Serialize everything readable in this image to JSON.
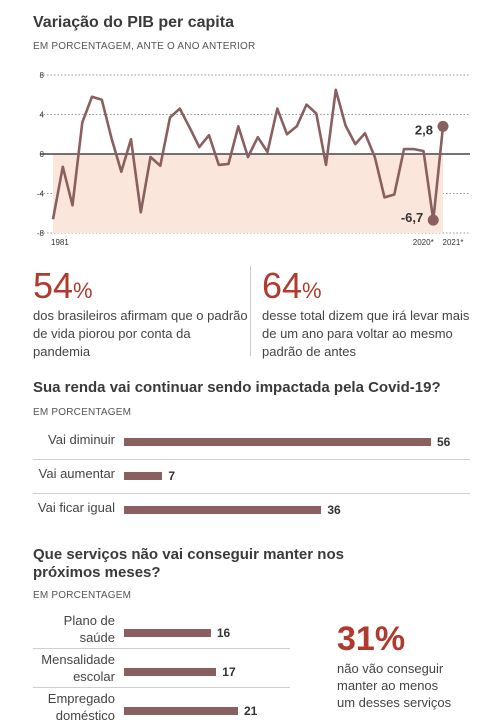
{
  "chart1": {
    "title": "Variação do PIB per capita",
    "subtitle": "EM PORCENTAGEM, ANTE O ANO ANTERIOR",
    "x_start_label": "1981",
    "x_end_labels": [
      "2020*",
      "2021*"
    ],
    "annotations": {
      "high": "2,8",
      "low": "-6,7"
    }
  },
  "stats": {
    "left": {
      "number": "54",
      "unit": "%",
      "text": "dos brasileiros afirmam que o padrão de vida piorou por conta da pandemia"
    },
    "right": {
      "number": "64",
      "unit": "%",
      "text": "desse total dizem que irá levar mais de um ano para voltar ao mesmo padrão de antes"
    }
  },
  "chart2": {
    "title": "Sua renda vai continuar sendo impactada pela Covid-19?",
    "subtitle": "EM PORCENTAGEM"
  },
  "chart3": {
    "title_line1": "Que serviços não vai conseguir manter nos",
    "title_line2": "próximos meses?",
    "subtitle": "EM PORCENTAGEM",
    "callout_number": "31%",
    "callout_text": [
      "não vão conseguir",
      "manter ao menos",
      "um desses serviços"
    ]
  },
  "chart_data": [
    {
      "type": "line",
      "title": "Variação do PIB per capita",
      "x": [
        1981,
        1982,
        1983,
        1984,
        1985,
        1986,
        1987,
        1988,
        1989,
        1990,
        1991,
        1992,
        1993,
        1994,
        1995,
        1996,
        1997,
        1998,
        1999,
        2000,
        2001,
        2002,
        2003,
        2004,
        2005,
        2006,
        2007,
        2008,
        2009,
        2010,
        2011,
        2012,
        2013,
        2014,
        2015,
        2016,
        2017,
        2018,
        2019,
        2020,
        2021
      ],
      "values": [
        -6.6,
        -1.3,
        -5.2,
        3.2,
        5.8,
        5.5,
        1.6,
        -1.8,
        1.5,
        -5.9,
        -0.3,
        -1.2,
        3.7,
        4.6,
        2.7,
        0.7,
        1.9,
        -1.1,
        -1.0,
        2.8,
        -0.3,
        1.7,
        0.2,
        4.6,
        2.0,
        2.8,
        5.0,
        4.1,
        -1.1,
        6.5,
        2.9,
        1.0,
        2.1,
        -0.3,
        -4.4,
        -4.1,
        0.5,
        0.5,
        0.3,
        -6.7,
        2.8
      ],
      "ylim": [
        -8,
        8
      ],
      "yticks": [
        8,
        4,
        0,
        -4,
        -8
      ],
      "area_below_zero": true
    },
    {
      "type": "bar",
      "orientation": "horizontal",
      "title": "Sua renda vai continuar sendo impactada pela Covid-19?",
      "categories": [
        "Vai diminuir",
        "Vai aumentar",
        "Vai ficar igual"
      ],
      "values": [
        56,
        7,
        36
      ],
      "xlim": [
        0,
        56
      ]
    },
    {
      "type": "bar",
      "orientation": "horizontal",
      "title": "Que serviços não vai conseguir manter nos próximos meses?",
      "categories": [
        [
          "Plano de",
          "saúde"
        ],
        [
          "Mensalidade",
          "escolar"
        ],
        [
          "Empregado",
          "doméstico"
        ]
      ],
      "values": [
        16,
        17,
        21
      ],
      "xlim": [
        0,
        21
      ]
    }
  ]
}
